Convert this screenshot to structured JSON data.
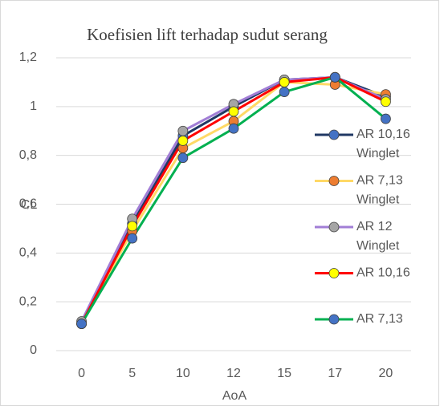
{
  "chart_data": {
    "type": "line",
    "title": "Koefisien lift terhadap sudut serang",
    "x_label": "AoA",
    "y_label": "CL",
    "categories": [
      "0",
      "5",
      "10",
      "12",
      "15",
      "17",
      "20"
    ],
    "series": [
      {
        "name": "AR 10,16 Winglet",
        "color": "#203864",
        "marker_color": "#4472c4",
        "values": [
          0.11,
          0.52,
          0.88,
          1.0,
          1.11,
          1.12,
          1.04
        ]
      },
      {
        "name": "AR 7,13 Winglet",
        "color": "#ffd966",
        "marker_color": "#ed7d31",
        "values": [
          0.11,
          0.49,
          0.83,
          0.94,
          1.1,
          1.09,
          1.05
        ]
      },
      {
        "name": "AR 12 Winglet",
        "color": "#a27ed6",
        "marker_color": "#a5a5a5",
        "values": [
          0.12,
          0.54,
          0.9,
          1.01,
          1.11,
          1.12,
          1.03
        ]
      },
      {
        "name": "AR 10,16",
        "color": "#ff0000",
        "marker_color": "#ffff00",
        "values": [
          0.11,
          0.51,
          0.86,
          0.98,
          1.1,
          1.12,
          1.02
        ]
      },
      {
        "name": "AR 7,13",
        "color": "#00b050",
        "marker_color": "#4472c4",
        "values": [
          0.11,
          0.46,
          0.79,
          0.91,
          1.06,
          1.12,
          0.95
        ]
      }
    ],
    "ylim": [
      0,
      1.2
    ],
    "yticks": [
      0,
      {
        "value": 0.2,
        "label": "0,2"
      },
      {
        "value": 0.4,
        "label": "0,4"
      },
      {
        "value": 0.6,
        "label": "0,6"
      },
      {
        "value": 0.8,
        "label": "0,8"
      },
      1,
      {
        "value": 1.2,
        "label": "1,2"
      }
    ],
    "grid": true,
    "legend": "right"
  }
}
